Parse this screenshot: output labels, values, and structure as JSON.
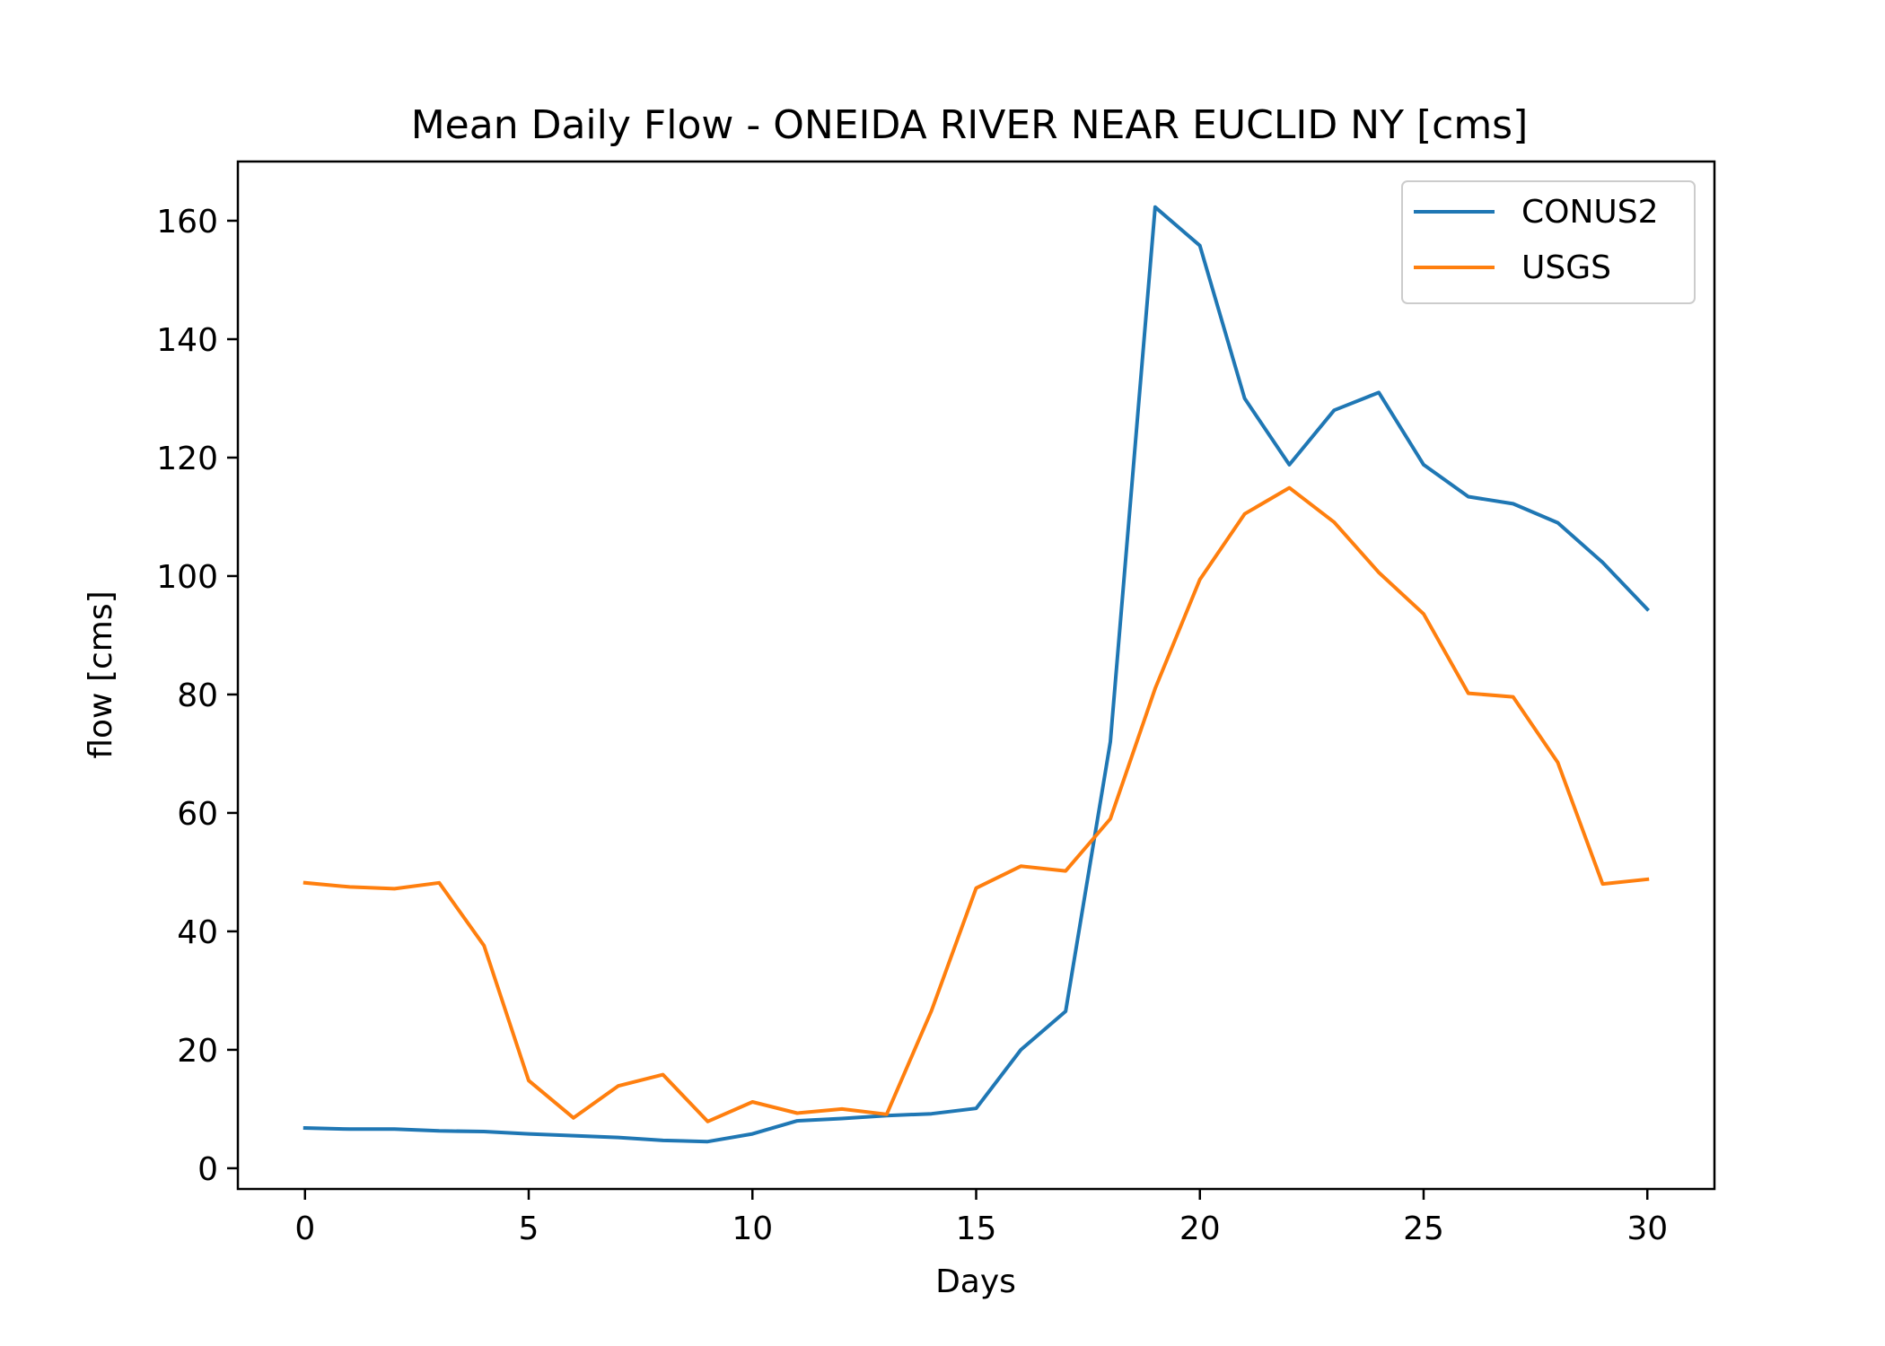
{
  "chart_data": {
    "type": "line",
    "title": "Mean Daily Flow - ONEIDA RIVER NEAR EUCLID NY [cms]",
    "xlabel": "Days",
    "ylabel": "flow [cms]",
    "x": [
      0,
      1,
      2,
      3,
      4,
      5,
      6,
      7,
      8,
      9,
      10,
      11,
      12,
      13,
      14,
      15,
      16,
      17,
      18,
      19,
      20,
      21,
      22,
      23,
      24,
      25,
      26,
      27,
      28,
      29,
      30
    ],
    "xlim": [
      -1.5,
      31.5
    ],
    "ylim": [
      -3.5,
      170
    ],
    "xticks": [
      0,
      5,
      10,
      15,
      20,
      25,
      30
    ],
    "yticks": [
      0,
      20,
      40,
      60,
      80,
      100,
      120,
      140,
      160
    ],
    "grid": false,
    "legend_position": "upper right",
    "series": [
      {
        "name": "CONUS2",
        "color": "#1f77b4",
        "values": [
          6.8,
          6.6,
          6.6,
          6.3,
          6.2,
          5.8,
          5.5,
          5.2,
          4.7,
          4.5,
          5.8,
          8.0,
          8.4,
          8.9,
          9.2,
          10.1,
          20.0,
          26.5,
          72.0,
          162.3,
          155.8,
          130.0,
          118.8,
          128.0,
          131.0,
          118.8,
          113.4,
          112.2,
          109.0,
          102.3,
          94.4
        ]
      },
      {
        "name": "USGS",
        "color": "#ff7f0e",
        "values": [
          48.2,
          47.5,
          47.2,
          48.2,
          37.6,
          14.8,
          8.5,
          13.9,
          15.8,
          7.9,
          11.2,
          9.3,
          10.0,
          9.1,
          26.6,
          47.3,
          51.0,
          50.2,
          59.0,
          81.0,
          99.4,
          110.5,
          114.9,
          109.1,
          100.6,
          93.6,
          80.2,
          79.6,
          68.5,
          48.0,
          48.8
        ]
      }
    ]
  }
}
